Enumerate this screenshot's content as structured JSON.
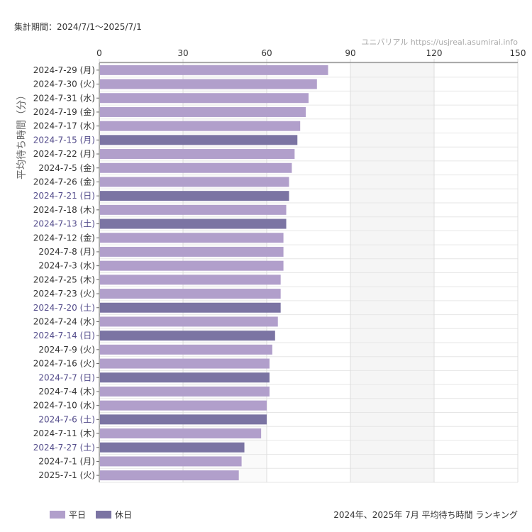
{
  "header": {
    "period": "集計期間：2024/7/1～2025/7/1",
    "source": "ユニバリアル  https://usjreal.asumirai.info"
  },
  "footer": {
    "caption": "2024年、2025年 7月 平均待ち時間 ランキング"
  },
  "colors": {
    "weekday": "#b19fcb",
    "holiday": "#7b74a3",
    "holiday_label": "#554e8c",
    "weekday_label": "#333333"
  },
  "chart_data": {
    "type": "bar",
    "orientation": "horizontal",
    "ylabel": "平均待ち時間（分）",
    "xlim": [
      0,
      150
    ],
    "xticks": [
      0,
      30,
      60,
      90,
      120,
      150
    ],
    "shaded_ranges": [
      [
        90,
        120
      ]
    ],
    "grid": true,
    "legend_position": "bottom-left",
    "categories": [
      "2024-7-29 (月)",
      "2024-7-30 (火)",
      "2024-7-31 (水)",
      "2024-7-19 (金)",
      "2024-7-17 (水)",
      "2024-7-15 (月)",
      "2024-7-22 (月)",
      "2024-7-5 (金)",
      "2024-7-26 (金)",
      "2024-7-21 (日)",
      "2024-7-18 (木)",
      "2024-7-13 (土)",
      "2024-7-12 (金)",
      "2024-7-8 (月)",
      "2024-7-3 (水)",
      "2024-7-25 (木)",
      "2024-7-23 (火)",
      "2024-7-20 (土)",
      "2024-7-24 (水)",
      "2024-7-14 (日)",
      "2024-7-9 (火)",
      "2024-7-16 (火)",
      "2024-7-7 (日)",
      "2024-7-4 (木)",
      "2024-7-10 (水)",
      "2024-7-6 (土)",
      "2024-7-11 (木)",
      "2024-7-27 (土)",
      "2024-7-1 (月)",
      "2025-7-1 (火)"
    ],
    "values": [
      82,
      78,
      75,
      74,
      72,
      71,
      70,
      69,
      68,
      68,
      67,
      67,
      66,
      66,
      66,
      65,
      65,
      65,
      64,
      63,
      62,
      61,
      61,
      61,
      60,
      60,
      58,
      52,
      51,
      50
    ],
    "holiday": [
      false,
      false,
      false,
      false,
      false,
      true,
      false,
      false,
      false,
      true,
      false,
      true,
      false,
      false,
      false,
      false,
      false,
      true,
      false,
      true,
      false,
      false,
      true,
      false,
      false,
      true,
      false,
      true,
      false,
      false
    ],
    "legend": [
      {
        "label": "平日",
        "key": "weekday"
      },
      {
        "label": "休日",
        "key": "holiday"
      }
    ]
  }
}
